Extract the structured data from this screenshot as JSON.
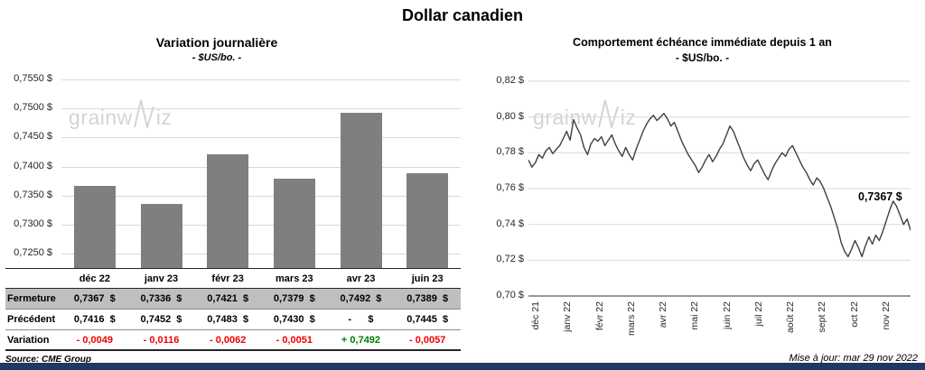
{
  "page": {
    "title": "Dollar canadien",
    "source": "Source: CME Group",
    "updated": "Mise à jour: mar 29 nov 2022"
  },
  "watermark": {
    "part1": "grainw",
    "part2": "iz"
  },
  "colors": {
    "bar": "#7f7f7f",
    "line": "#3f3f3f",
    "negative": "#ee0000",
    "positive": "#007a00",
    "table_shaded_row_bg": "#bfbfbf",
    "bottom_bar": "#1f3864"
  },
  "chart_data": [
    {
      "type": "bar",
      "title": "Variation  journalière",
      "subtitle": "- $US/bo. -",
      "categories": [
        "déc 22",
        "janv 23",
        "févr 23",
        "mars 23",
        "avr 23",
        "juin 23"
      ],
      "values": [
        0.7367,
        0.7336,
        0.7421,
        0.7379,
        0.7492,
        0.7389
      ],
      "ylim": [
        0.7225,
        0.755
      ],
      "yticks": [
        0.755,
        0.75,
        0.745,
        0.74,
        0.735,
        0.73,
        0.725
      ],
      "ytick_labels": [
        "0,7550 $",
        "0,7500 $",
        "0,7450 $",
        "0,7400 $",
        "0,7350 $",
        "0,7300 $",
        "0,7250 $"
      ],
      "grid": true,
      "legend": "none"
    },
    {
      "type": "line",
      "title": "Comportement échéance immédiate depuis 1 an",
      "subtitle": "- $US/bo. -",
      "x_labels": [
        "déc 21",
        "janv 22",
        "févr 22",
        "mars 22",
        "avr 22",
        "mai 22",
        "juin 22",
        "juil 22",
        "août 22",
        "sept 22",
        "oct 22",
        "nov 22"
      ],
      "values": [
        0.776,
        0.772,
        0.7745,
        0.779,
        0.777,
        0.781,
        0.783,
        0.7795,
        0.782,
        0.784,
        0.788,
        0.792,
        0.787,
        0.7985,
        0.794,
        0.79,
        0.783,
        0.779,
        0.785,
        0.788,
        0.7865,
        0.789,
        0.784,
        0.787,
        0.79,
        0.785,
        0.781,
        0.778,
        0.783,
        0.779,
        0.776,
        0.782,
        0.787,
        0.792,
        0.796,
        0.799,
        0.801,
        0.798,
        0.8,
        0.802,
        0.799,
        0.795,
        0.797,
        0.792,
        0.787,
        0.783,
        0.779,
        0.776,
        0.773,
        0.769,
        0.772,
        0.776,
        0.779,
        0.775,
        0.778,
        0.782,
        0.785,
        0.79,
        0.795,
        0.792,
        0.787,
        0.782,
        0.777,
        0.773,
        0.77,
        0.774,
        0.776,
        0.772,
        0.768,
        0.765,
        0.77,
        0.774,
        0.777,
        0.78,
        0.778,
        0.782,
        0.784,
        0.78,
        0.776,
        0.772,
        0.769,
        0.765,
        0.762,
        0.766,
        0.764,
        0.76,
        0.755,
        0.75,
        0.744,
        0.738,
        0.73,
        0.725,
        0.722,
        0.726,
        0.731,
        0.727,
        0.722,
        0.728,
        0.733,
        0.729,
        0.734,
        0.731,
        0.736,
        0.742,
        0.748,
        0.753,
        0.75,
        0.745,
        0.74,
        0.743,
        0.7367
      ],
      "ylim": [
        0.7,
        0.82
      ],
      "yticks": [
        0.82,
        0.8,
        0.78,
        0.76,
        0.74,
        0.72,
        0.7
      ],
      "ytick_labels": [
        "0,82 $",
        "0,80 $",
        "0,78 $",
        "0,76 $",
        "0,74 $",
        "0,72 $",
        "0,70 $"
      ],
      "annotation": "0,7367 $",
      "grid": true,
      "legend": "none"
    }
  ],
  "table": {
    "col_headers": [
      "déc 22",
      "janv 23",
      "févr 23",
      "mars 23",
      "avr 23",
      "juin 23"
    ],
    "rows": [
      {
        "key": "fermeture",
        "label": "Fermeture",
        "values": [
          "0,7367  $",
          "0,7336  $",
          "0,7421  $",
          "0,7379  $",
          "0,7492  $",
          "0,7389  $"
        ]
      },
      {
        "key": "precedent",
        "label": "Précédent",
        "values": [
          "0,7416  $",
          "0,7452  $",
          "0,7483  $",
          "0,7430  $",
          "-      $",
          "0,7445  $"
        ]
      },
      {
        "key": "variation",
        "label": "Variation",
        "values": [
          "- 0,0049",
          "- 0,0116",
          "- 0,0062",
          "- 0,0051",
          "+ 0,7492",
          "- 0,0057"
        ],
        "value_colors": [
          "neg",
          "neg",
          "neg",
          "neg",
          "pos",
          "neg"
        ]
      }
    ]
  }
}
